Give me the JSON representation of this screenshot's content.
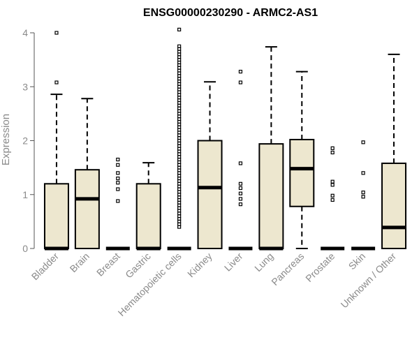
{
  "chart_data": {
    "type": "boxplot",
    "title": "ENSG00000230290 - ARMC2-AS1",
    "xlabel": "",
    "ylabel": "Expression",
    "ylim": [
      0,
      4.1
    ],
    "yticks": [
      0,
      1,
      2,
      3,
      4
    ],
    "colors": {
      "box_fill": "#ede7cf",
      "box_stroke": "#000000",
      "axis": "#555555",
      "outlier": "#000000"
    },
    "categories": [
      "Bladder",
      "Brain",
      "Breast",
      "Gastric",
      "Hematopoietic cells",
      "Kidney",
      "Liver",
      "Lung",
      "Pancreas",
      "Prostate",
      "Skin",
      "Unknown / Other"
    ],
    "boxes": [
      {
        "name": "Bladder",
        "q1": 0,
        "median": 0,
        "q3": 1.2,
        "lower": 0,
        "upper": 2.86,
        "outliers": [
          3.08,
          4.0
        ]
      },
      {
        "name": "Brain",
        "q1": 0,
        "median": 0.92,
        "q3": 1.46,
        "lower": 0,
        "upper": 2.78,
        "outliers": []
      },
      {
        "name": "Breast",
        "q1": 0,
        "median": 0,
        "q3": 0,
        "lower": 0,
        "upper": 0,
        "outliers": [
          0.88,
          1.1,
          1.22,
          1.3,
          1.4,
          1.55,
          1.65
        ]
      },
      {
        "name": "Gastric",
        "q1": 0,
        "median": 0,
        "q3": 1.2,
        "lower": 0,
        "upper": 1.59,
        "outliers": []
      },
      {
        "name": "Hematopoietic cells",
        "q1": 0,
        "median": 0,
        "q3": 0,
        "lower": 0,
        "upper": 0,
        "outliers": [
          0.4,
          0.45,
          0.5,
          0.55,
          0.6,
          0.65,
          0.7,
          0.75,
          0.8,
          0.85,
          0.9,
          0.95,
          1.0,
          1.05,
          1.1,
          1.15,
          1.2,
          1.25,
          1.3,
          1.35,
          1.4,
          1.45,
          1.5,
          1.55,
          1.6,
          1.65,
          1.7,
          1.75,
          1.8,
          1.85,
          1.9,
          1.95,
          2.0,
          2.05,
          2.1,
          2.15,
          2.2,
          2.25,
          2.3,
          2.35,
          2.4,
          2.45,
          2.5,
          2.55,
          2.6,
          2.65,
          2.7,
          2.75,
          2.8,
          2.85,
          2.9,
          2.95,
          3.0,
          3.05,
          3.1,
          3.15,
          3.2,
          3.25,
          3.3,
          3.35,
          3.4,
          3.45,
          3.5,
          3.55,
          3.6,
          3.65,
          3.7,
          3.75,
          4.06
        ]
      },
      {
        "name": "Kidney",
        "q1": 0,
        "median": 1.13,
        "q3": 2.0,
        "lower": 0,
        "upper": 3.09,
        "outliers": []
      },
      {
        "name": "Liver",
        "q1": 0,
        "median": 0,
        "q3": 0,
        "lower": 0,
        "upper": 0,
        "outliers": [
          0.82,
          0.92,
          1.02,
          1.12,
          1.2,
          1.58,
          3.08,
          3.28
        ]
      },
      {
        "name": "Lung",
        "q1": 0,
        "median": 0,
        "q3": 1.94,
        "lower": 0,
        "upper": 3.74,
        "outliers": []
      },
      {
        "name": "Pancreas",
        "q1": 0.78,
        "median": 1.48,
        "q3": 2.02,
        "lower": 0,
        "upper": 3.28,
        "outliers": []
      },
      {
        "name": "Prostate",
        "q1": 0,
        "median": 0,
        "q3": 0,
        "lower": 0,
        "upper": 0,
        "outliers": [
          0.9,
          0.98,
          1.18,
          1.24,
          1.78,
          1.86
        ]
      },
      {
        "name": "Skin",
        "q1": 0,
        "median": 0,
        "q3": 0,
        "lower": 0,
        "upper": 0,
        "outliers": [
          0.96,
          1.04,
          1.4,
          1.97
        ]
      },
      {
        "name": "Unknown / Other",
        "q1": 0,
        "median": 0.39,
        "q3": 1.58,
        "lower": 0,
        "upper": 3.6,
        "outliers": []
      }
    ]
  }
}
